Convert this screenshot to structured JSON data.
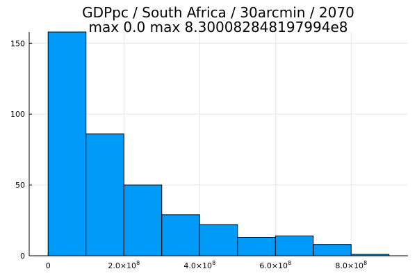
{
  "chart_data": {
    "type": "bar",
    "title_lines": [
      "GDPpc / South Africa / 30arcmin / 2070",
      "max 0.0  max 8.300082848197994e8"
    ],
    "xlabel": "",
    "ylabel": "",
    "bins": [
      {
        "start": 0,
        "end": 100000000,
        "count": 158
      },
      {
        "start": 100000000,
        "end": 200000000,
        "count": 86
      },
      {
        "start": 200000000,
        "end": 300000000,
        "count": 50
      },
      {
        "start": 300000000,
        "end": 400000000,
        "count": 29
      },
      {
        "start": 400000000,
        "end": 500000000,
        "count": 22
      },
      {
        "start": 500000000,
        "end": 600000000,
        "count": 13
      },
      {
        "start": 600000000,
        "end": 700000000,
        "count": 14
      },
      {
        "start": 700000000,
        "end": 800000000,
        "count": 8
      },
      {
        "start": 800000000,
        "end": 900000000,
        "count": 1
      }
    ],
    "xlim": [
      -50000000,
      950000000
    ],
    "ylim": [
      0,
      158
    ],
    "x_ticks": [
      {
        "value": 0,
        "mantissa": "0",
        "exponent": ""
      },
      {
        "value": 200000000,
        "mantissa": "2.0×10",
        "exponent": "8"
      },
      {
        "value": 400000000,
        "mantissa": "4.0×10",
        "exponent": "8"
      },
      {
        "value": 600000000,
        "mantissa": "6.0×10",
        "exponent": "8"
      },
      {
        "value": 800000000,
        "mantissa": "8.0×10",
        "exponent": "8"
      }
    ],
    "y_ticks": [
      {
        "value": 0,
        "label": "0"
      },
      {
        "value": 50,
        "label": "50"
      },
      {
        "value": 100,
        "label": "100"
      },
      {
        "value": 150,
        "label": "150"
      }
    ],
    "grid": true,
    "legend": false,
    "bar_color": "#009af9",
    "edge_color": "#000000"
  }
}
